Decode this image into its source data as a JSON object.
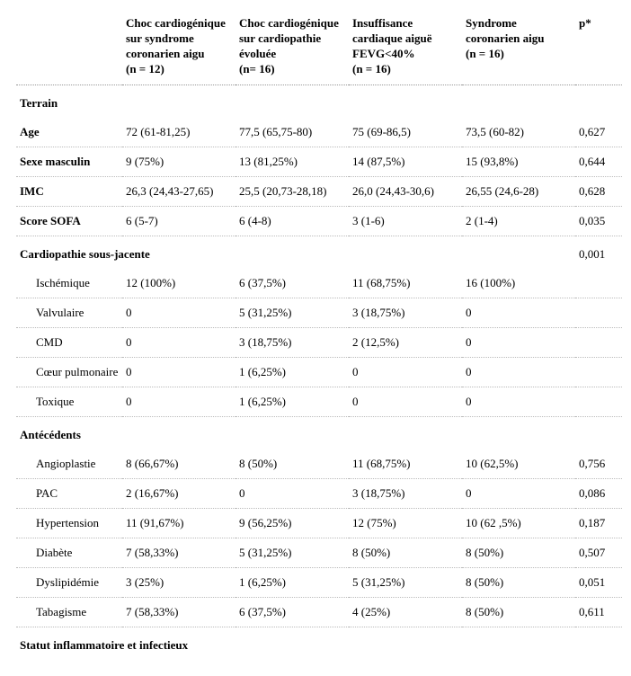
{
  "columns": {
    "g1": "Choc cardiogénique sur syndrome coronarien aigu\n(n = 12)",
    "g2": "Choc cardiogénique sur cardiopathie évoluée\n(n= 16)",
    "g3": "Insuffisance cardiaque aiguë FEVG<40%\n(n = 16)",
    "g4": "Syndrome coronarien aigu\n(n = 16)",
    "p": "p*"
  },
  "sections": {
    "terrain": "Terrain",
    "cardiopathie": "Cardiopathie sous-jacente",
    "antecedents": "Antécédents",
    "statut": "Statut inflammatoire et infectieux"
  },
  "rows": {
    "age": {
      "label": "Age",
      "g1": "72 (61-81,25)",
      "g2": "77,5 (65,75-80)",
      "g3": "75 (69-86,5)",
      "g4": "73,5 (60-82)",
      "p": "0,627"
    },
    "sexe": {
      "label": "Sexe masculin",
      "g1": "9 (75%)",
      "g2": "13 (81,25%)",
      "g3": "14 (87,5%)",
      "g4": "15 (93,8%)",
      "p": "0,644"
    },
    "imc": {
      "label": "IMC",
      "g1": "26,3 (24,43-27,65)",
      "g2": "25,5 (20,73-28,18)",
      "g3": "26,0 (24,43-30,6)",
      "g4": "26,55 (24,6-28)",
      "p": "0,628"
    },
    "sofa": {
      "label": "Score SOFA",
      "g1": "6 (5-7)",
      "g2": "6 (4-8)",
      "g3": "3 (1-6)",
      "g4": "2 (1-4)",
      "p": "0,035"
    },
    "cardiopathie_p": "0,001",
    "ischemique": {
      "label": "Ischémique",
      "g1": "12 (100%)",
      "g2": "6 (37,5%)",
      "g3": "11 (68,75%)",
      "g4": "16 (100%)",
      "p": ""
    },
    "valvulaire": {
      "label": "Valvulaire",
      "g1": "0",
      "g2": "5 (31,25%)",
      "g3": "3 (18,75%)",
      "g4": "0",
      "p": ""
    },
    "cmd": {
      "label": "CMD",
      "g1": "0",
      "g2": "3 (18,75%)",
      "g3": "2 (12,5%)",
      "g4": "0",
      "p": ""
    },
    "coeur": {
      "label": "Cœur pulmonaire",
      "g1": "0",
      "g2": "1 (6,25%)",
      "g3": "0",
      "g4": "0",
      "p": ""
    },
    "toxique": {
      "label": "Toxique",
      "g1": "0",
      "g2": "1 (6,25%)",
      "g3": "0",
      "g4": "0",
      "p": ""
    },
    "angioplastie": {
      "label": "Angioplastie",
      "g1": "8 (66,67%)",
      "g2": "8 (50%)",
      "g3": "11 (68,75%)",
      "g4": "10 (62,5%)",
      "p": "0,756"
    },
    "pac": {
      "label": "PAC",
      "g1": "2 (16,67%)",
      "g2": "0",
      "g3": "3 (18,75%)",
      "g4": "0",
      "p": "0,086"
    },
    "hypertension": {
      "label": "Hypertension",
      "g1": "11 (91,67%)",
      "g2": "9 (56,25%)",
      "g3": "12 (75%)",
      "g4": "10 (62 ,5%)",
      "p": "0,187"
    },
    "diabete": {
      "label": "Diabète",
      "g1": "7 (58,33%)",
      "g2": "5 (31,25%)",
      "g3": "8 (50%)",
      "g4": "8 (50%)",
      "p": "0,507"
    },
    "dyslipidemie": {
      "label": "Dyslipidémie",
      "g1": "3 (25%)",
      "g2": "1 (6,25%)",
      "g3": "5 (31,25%)",
      "g4": "8 (50%)",
      "p": "0,051"
    },
    "tabagisme": {
      "label": "Tabagisme",
      "g1": "7 (58,33%)",
      "g2": "6 (37,5%)",
      "g3": "4 (25%)",
      "g4": "8 (50%)",
      "p": "0,611"
    }
  }
}
